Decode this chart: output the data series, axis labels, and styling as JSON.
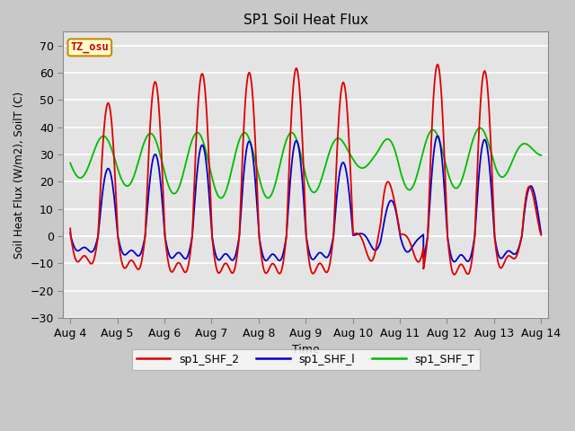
{
  "title": "SP1 Soil Heat Flux",
  "ylabel": "Soil Heat Flux (W/m2), SoilT (C)",
  "xlabel": "Time",
  "ylim": [
    -30,
    75
  ],
  "yticks": [
    -30,
    -20,
    -10,
    0,
    10,
    20,
    30,
    40,
    50,
    60,
    70
  ],
  "xtick_labels": [
    "Aug 4",
    "Aug 5",
    "Aug 6",
    "Aug 7",
    "Aug 8",
    "Aug 9",
    "Aug 10",
    "Aug 11",
    "Aug 12",
    "Aug 13",
    "Aug 14"
  ],
  "line_colors": {
    "sp1_SHF_2": "#dd0000",
    "sp1_SHF_1": "#0000cc",
    "sp1_SHF_T": "#00bb00"
  },
  "legend_labels": [
    "sp1_SHF_2",
    "sp1_SHF_l",
    "sp1_SHF_T"
  ],
  "tz_label": "TZ_osu",
  "tz_bg": "#ffffcc",
  "tz_border": "#cc8800",
  "fig_bg": "#c8c8c8",
  "ax_bg": "#e4e4e4"
}
